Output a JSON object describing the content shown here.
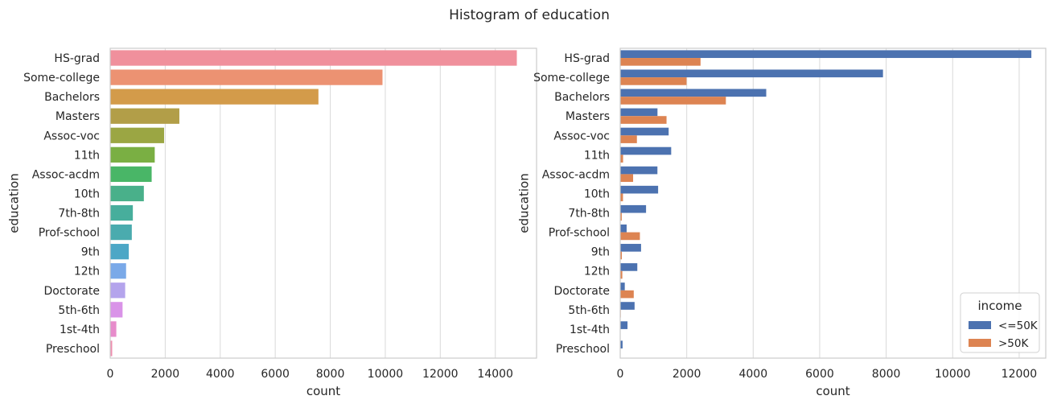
{
  "figure": {
    "title": "Histogram of education"
  },
  "chart_data": [
    {
      "type": "bar",
      "orientation": "horizontal",
      "categories": [
        "HS-grad",
        "Some-college",
        "Bachelors",
        "Masters",
        "Assoc-voc",
        "11th",
        "Assoc-acdm",
        "10th",
        "7th-8th",
        "Prof-school",
        "9th",
        "12th",
        "Doctorate",
        "5th-6th",
        "1st-4th",
        "Preschool"
      ],
      "values": [
        14783,
        9899,
        7570,
        2514,
        1959,
        1619,
        1507,
        1223,
        823,
        785,
        676,
        577,
        544,
        449,
        222,
        72
      ],
      "colors": [
        "#f0909c",
        "#ec9272",
        "#d39b4a",
        "#b29e48",
        "#9ba643",
        "#7aaf43",
        "#49b667",
        "#49b08a",
        "#47ae9c",
        "#4aabae",
        "#4ca7c6",
        "#7aa9e8",
        "#b4a4ec",
        "#d993e8",
        "#e78ccb",
        "#ef8fb0"
      ],
      "xlabel": "count",
      "ylabel": "education",
      "xlim": [
        0,
        15500
      ],
      "xticks": [
        0,
        2000,
        4000,
        6000,
        8000,
        10000,
        12000,
        14000
      ],
      "grid": "vertical"
    },
    {
      "type": "bar",
      "orientation": "horizontal",
      "categories": [
        "HS-grad",
        "Some-college",
        "Bachelors",
        "Masters",
        "Assoc-voc",
        "11th",
        "Assoc-acdm",
        "10th",
        "7th-8th",
        "Prof-school",
        "9th",
        "12th",
        "Doctorate",
        "5th-6th",
        "1st-4th",
        "Preschool"
      ],
      "series": [
        {
          "name": "<=50K",
          "color": "#4c72b0",
          "values": [
            12367,
            7904,
            4392,
            1121,
            1457,
            1533,
            1119,
            1140,
            777,
            193,
            627,
            514,
            137,
            432,
            219,
            71
          ]
        },
        {
          "name": ">50K",
          "color": "#dd8452",
          "values": [
            2416,
            1995,
            3178,
            1393,
            502,
            86,
            388,
            83,
            46,
            592,
            49,
            63,
            407,
            17,
            3,
            1
          ]
        }
      ],
      "xlabel": "count",
      "ylabel": "education",
      "xlim": [
        0,
        12800
      ],
      "xticks": [
        0,
        2000,
        4000,
        6000,
        8000,
        10000,
        12000
      ],
      "grid": "vertical",
      "legend": {
        "title": "income",
        "placement": "lower-right"
      }
    }
  ]
}
